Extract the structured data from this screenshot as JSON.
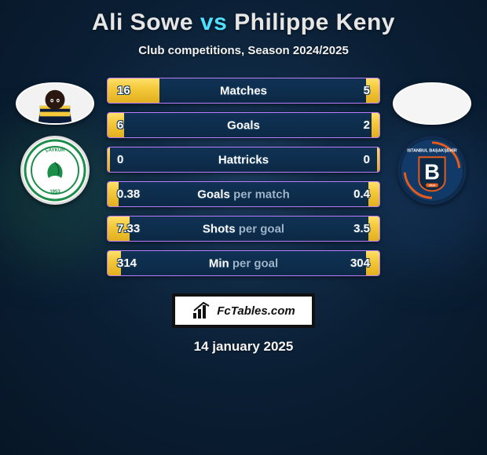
{
  "title": {
    "player1": "Ali Sowe",
    "vs": "vs",
    "player2": "Philippe Keny"
  },
  "subtitle": "Club competitions, Season 2024/2025",
  "date": "14 january 2025",
  "stats": [
    {
      "label_main": "Matches",
      "label_dim": null,
      "left_val": "16",
      "right_val": "5",
      "left_pct": 19,
      "right_pct": 5
    },
    {
      "label_main": "Goals",
      "label_dim": null,
      "left_val": "6",
      "right_val": "2",
      "left_pct": 6,
      "right_pct": 3
    },
    {
      "label_main": "Hattricks",
      "label_dim": null,
      "left_val": "0",
      "right_val": "0",
      "left_pct": 1,
      "right_pct": 1
    },
    {
      "label_main": "Goals",
      "label_dim": "per match",
      "left_val": "0.38",
      "right_val": "0.4",
      "left_pct": 4,
      "right_pct": 4
    },
    {
      "label_main": "Shots",
      "label_dim": "per goal",
      "left_val": "7.33",
      "right_val": "3.5",
      "left_pct": 8,
      "right_pct": 4
    },
    {
      "label_main": "Min",
      "label_dim": "per goal",
      "left_val": "314",
      "right_val": "304",
      "left_pct": 5,
      "right_pct": 5
    }
  ],
  "colors": {
    "accent_border": "#b97dfc",
    "bar_bg_top": "#103254",
    "bar_bg_bottom": "#0c2946",
    "fill_top": "#ffe06b",
    "fill_bottom": "#e2b020",
    "title_vs": "#4fe0ff"
  },
  "avatars": {
    "left_player_name": "ali-sowe",
    "right_player_name": "philippe-keny",
    "left_club_name": "caykur-rizespor",
    "right_club_name": "istanbul-basaksehir"
  },
  "footer_logo_text": "FcTables.com"
}
